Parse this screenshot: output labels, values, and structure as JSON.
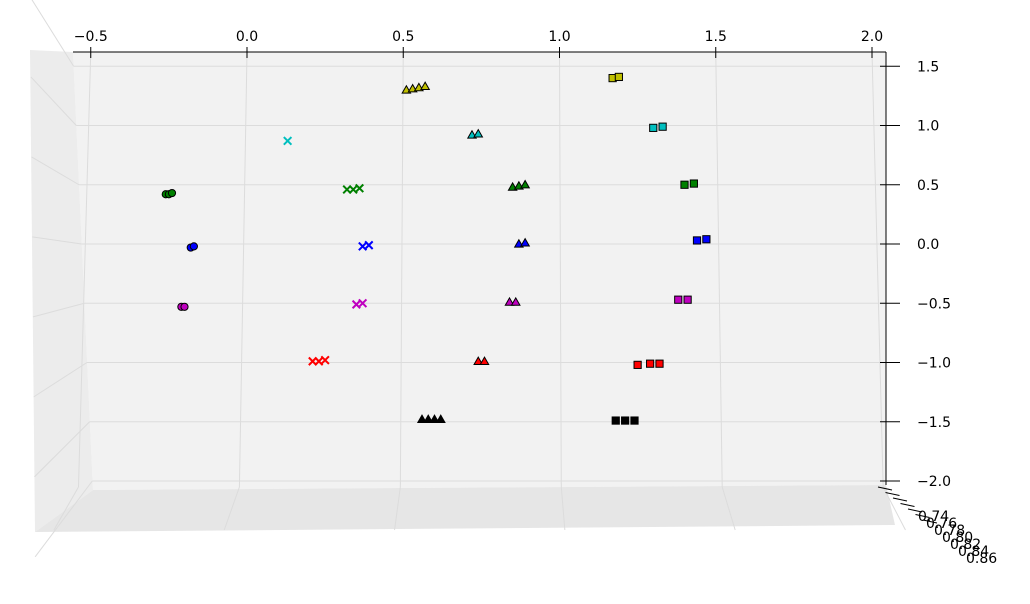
{
  "chart_data": {
    "type": "scatter",
    "projection": "3d",
    "grid": true,
    "pane_color": "#f2f2f2",
    "xlim": [
      -0.56,
      2.05
    ],
    "ylim": [
      -2.05,
      1.6
    ],
    "x_ticks": [
      "−0.5",
      "0.0",
      "0.5",
      "1.0",
      "1.5",
      "2.0"
    ],
    "x_tick_values": [
      -0.5,
      0.0,
      0.5,
      1.0,
      1.5,
      2.0
    ],
    "y_ticks": [
      "1.5",
      "1.0",
      "0.5",
      "0.0",
      "−0.5",
      "−1.0",
      "−1.5",
      "−2.0"
    ],
    "y_tick_values": [
      1.5,
      1.0,
      0.5,
      0.0,
      -0.5,
      -1.0,
      -1.5,
      -2.0
    ],
    "z_ticks": [
      "0.74",
      "0.76",
      "0.78",
      "0.80",
      "0.82",
      "0.84",
      "0.86"
    ],
    "groups": [
      {
        "marker": "o",
        "color": "#008000",
        "points": [
          [
            -0.26,
            0.42
          ],
          [
            -0.25,
            0.42
          ],
          [
            -0.24,
            0.43
          ]
        ]
      },
      {
        "marker": "o",
        "color": "#0000ff",
        "points": [
          [
            -0.18,
            -0.03
          ],
          [
            -0.17,
            -0.02
          ]
        ]
      },
      {
        "marker": "o",
        "color": "#bf00bf",
        "points": [
          [
            -0.21,
            -0.53
          ],
          [
            -0.2,
            -0.53
          ]
        ]
      },
      {
        "marker": "x",
        "color": "#00bfbf",
        "points": [
          [
            0.13,
            0.87
          ]
        ]
      },
      {
        "marker": "x",
        "color": "#008000",
        "points": [
          [
            0.32,
            0.46
          ],
          [
            0.34,
            0.46
          ],
          [
            0.36,
            0.47
          ]
        ]
      },
      {
        "marker": "x",
        "color": "#0000ff",
        "points": [
          [
            0.37,
            -0.02
          ],
          [
            0.39,
            -0.01
          ]
        ]
      },
      {
        "marker": "x",
        "color": "#bf00bf",
        "points": [
          [
            0.35,
            -0.51
          ],
          [
            0.37,
            -0.5
          ]
        ]
      },
      {
        "marker": "x",
        "color": "#ff0000",
        "points": [
          [
            0.21,
            -0.99
          ],
          [
            0.23,
            -0.99
          ],
          [
            0.25,
            -0.98
          ]
        ]
      },
      {
        "marker": "^",
        "color": "#bfbf00",
        "points": [
          [
            0.51,
            1.3
          ],
          [
            0.53,
            1.31
          ],
          [
            0.55,
            1.32
          ],
          [
            0.57,
            1.33
          ]
        ]
      },
      {
        "marker": "^",
        "color": "#00bfbf",
        "points": [
          [
            0.72,
            0.92
          ],
          [
            0.74,
            0.93
          ]
        ]
      },
      {
        "marker": "^",
        "color": "#008000",
        "points": [
          [
            0.85,
            0.48
          ],
          [
            0.87,
            0.49
          ],
          [
            0.89,
            0.5
          ]
        ]
      },
      {
        "marker": "^",
        "color": "#0000ff",
        "points": [
          [
            0.87,
            0.0
          ],
          [
            0.89,
            0.01
          ]
        ]
      },
      {
        "marker": "^",
        "color": "#bf00bf",
        "points": [
          [
            0.84,
            -0.49
          ],
          [
            0.86,
            -0.49
          ]
        ]
      },
      {
        "marker": "^",
        "color": "#ff0000",
        "points": [
          [
            0.74,
            -0.99
          ],
          [
            0.76,
            -0.99
          ]
        ]
      },
      {
        "marker": "^",
        "color": "#000000",
        "points": [
          [
            0.56,
            -1.48
          ],
          [
            0.58,
            -1.48
          ],
          [
            0.6,
            -1.48
          ],
          [
            0.62,
            -1.48
          ]
        ]
      },
      {
        "marker": "s",
        "color": "#bfbf00",
        "points": [
          [
            1.17,
            1.4
          ],
          [
            1.19,
            1.41
          ]
        ]
      },
      {
        "marker": "s",
        "color": "#00bfbf",
        "points": [
          [
            1.3,
            0.98
          ],
          [
            1.33,
            0.99
          ]
        ]
      },
      {
        "marker": "s",
        "color": "#008000",
        "points": [
          [
            1.4,
            0.5
          ],
          [
            1.43,
            0.51
          ]
        ]
      },
      {
        "marker": "s",
        "color": "#0000ff",
        "points": [
          [
            1.44,
            0.03
          ],
          [
            1.47,
            0.04
          ]
        ]
      },
      {
        "marker": "s",
        "color": "#bf00bf",
        "points": [
          [
            1.38,
            -0.47
          ],
          [
            1.41,
            -0.47
          ]
        ]
      },
      {
        "marker": "s",
        "color": "#ff0000",
        "points": [
          [
            1.25,
            -1.02
          ],
          [
            1.29,
            -1.01
          ],
          [
            1.32,
            -1.01
          ]
        ]
      },
      {
        "marker": "s",
        "color": "#000000",
        "points": [
          [
            1.18,
            -1.49
          ],
          [
            1.21,
            -1.49
          ],
          [
            1.24,
            -1.49
          ]
        ]
      }
    ]
  }
}
